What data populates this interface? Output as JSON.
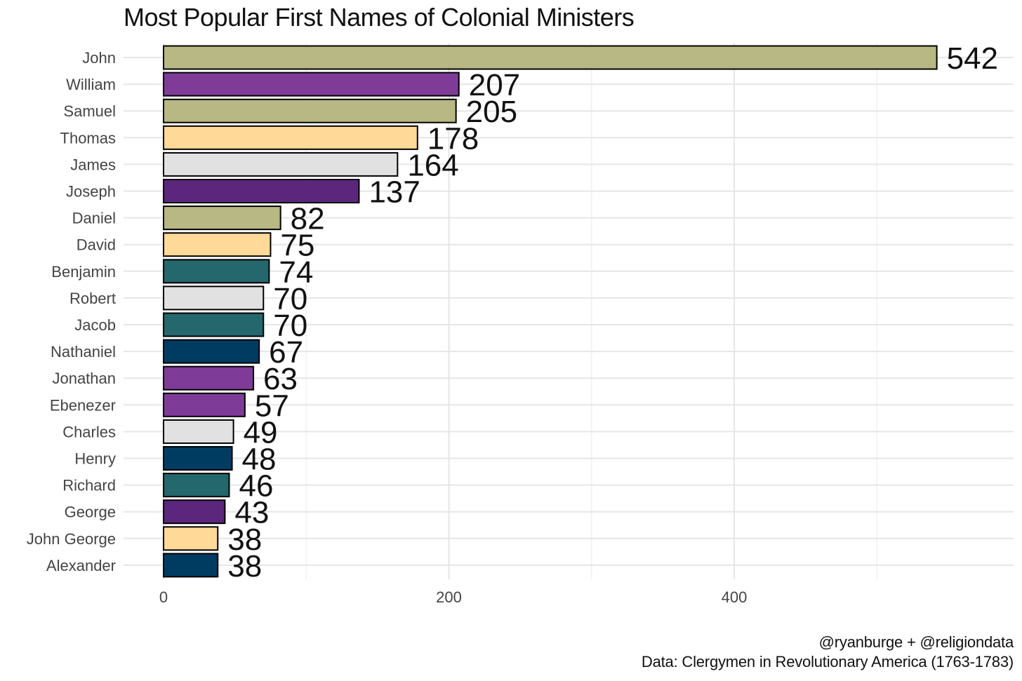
{
  "chart_data": {
    "type": "bar",
    "orientation": "horizontal",
    "title": "Most Popular First Names of Colonial Ministers",
    "xlabel": "",
    "ylabel": "",
    "xlim": [
      0,
      590
    ],
    "x_ticks": [
      0,
      200,
      400
    ],
    "grid": true,
    "categories": [
      "John",
      "William",
      "Samuel",
      "Thomas",
      "James",
      "Joseph",
      "Daniel",
      "David",
      "Benjamin",
      "Robert",
      "Jacob",
      "Nathaniel",
      "Jonathan",
      "Ebenezer",
      "Charles",
      "Henry",
      "Richard",
      "George",
      "John George",
      "Alexander"
    ],
    "values": [
      542,
      207,
      205,
      178,
      164,
      137,
      82,
      75,
      74,
      70,
      70,
      67,
      63,
      57,
      49,
      48,
      46,
      43,
      38,
      38
    ],
    "colors": [
      "#b8b884",
      "#7e3c98",
      "#b8b884",
      "#fed998",
      "#e1e1e1",
      "#5c267d",
      "#b8b884",
      "#fed998",
      "#24676c",
      "#e1e1e1",
      "#24676c",
      "#003c62",
      "#7e3c98",
      "#7e3c98",
      "#e1e1e1",
      "#003c62",
      "#24676c",
      "#5c267d",
      "#fed998",
      "#003c62"
    ]
  },
  "captions": {
    "credit": "@ryanburge + @religiondata",
    "source": "Data: Clergymen in Revolutionary America (1763-1783)"
  }
}
